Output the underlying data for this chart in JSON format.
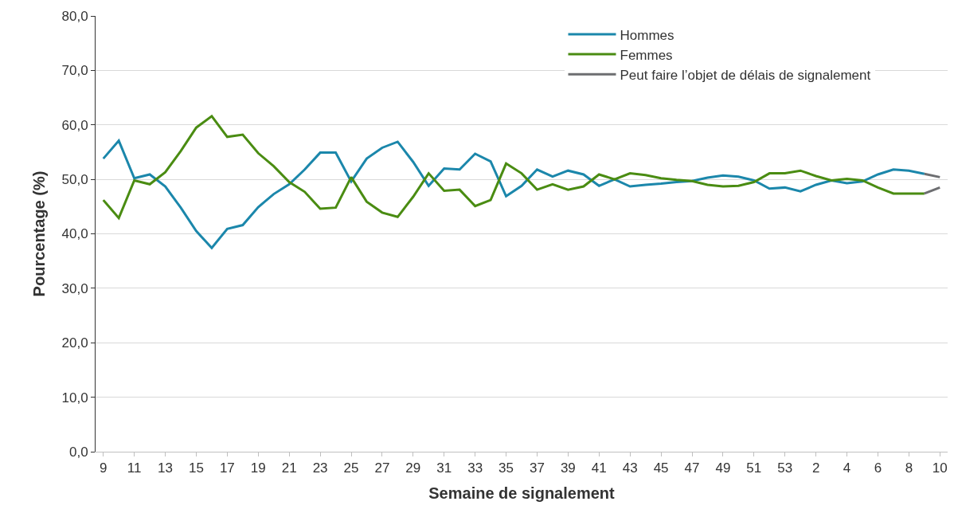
{
  "chart_data": {
    "type": "line",
    "xlabel": "Semaine de signalement",
    "ylabel": "Pourcentage (%)",
    "categories": [
      "9",
      null,
      "11",
      null,
      "13",
      null,
      "15",
      null,
      "17",
      null,
      "19",
      null,
      "21",
      null,
      "23",
      null,
      "25",
      null,
      "27",
      null,
      "29",
      null,
      "31",
      null,
      "33",
      null,
      "35",
      null,
      "37",
      null,
      "39",
      null,
      "41",
      null,
      "43",
      null,
      "45",
      null,
      "47",
      null,
      "49",
      null,
      "51",
      null,
      "53",
      null,
      "2",
      null,
      "4",
      null,
      "6",
      null,
      "8",
      null,
      "10"
    ],
    "series": [
      {
        "name": "Hommes",
        "color": "#1b87ab",
        "values": [
          53.8,
          57.1,
          50.2,
          50.9,
          48.7,
          44.8,
          40.5,
          37.4,
          40.9,
          41.6,
          44.9,
          47.3,
          49.1,
          51.8,
          54.9,
          54.9,
          49.6,
          53.8,
          55.8,
          56.9,
          53.2,
          48.8,
          52.0,
          51.8,
          54.7,
          53.3,
          46.9,
          48.8,
          51.8,
          50.5,
          51.6,
          50.9,
          48.8,
          50.0,
          48.7,
          49.0,
          49.2,
          49.5,
          49.7,
          50.3,
          50.7,
          50.5,
          49.8,
          48.3,
          48.5,
          47.8,
          49.0,
          49.8,
          49.3,
          49.6,
          50.9,
          51.8,
          51.6,
          51.0,
          null
        ]
      },
      {
        "name": "Femmes",
        "color": "#4a8c12",
        "values": [
          46.2,
          42.9,
          49.8,
          49.1,
          51.3,
          55.2,
          59.5,
          61.6,
          57.8,
          58.2,
          54.8,
          52.4,
          49.5,
          47.7,
          44.6,
          44.8,
          50.4,
          45.9,
          43.9,
          43.1,
          46.8,
          51.1,
          47.9,
          48.1,
          45.1,
          46.2,
          52.9,
          51.1,
          48.1,
          49.1,
          48.1,
          48.7,
          50.9,
          50.0,
          51.1,
          50.8,
          50.2,
          49.9,
          49.7,
          49.0,
          48.7,
          48.8,
          49.5,
          51.1,
          51.1,
          51.6,
          50.6,
          49.8,
          50.1,
          49.8,
          48.5,
          47.4,
          47.4,
          47.4,
          null
        ]
      },
      {
        "name": "Peut faire l’objet de délais de signalement",
        "color": "#6d6e71",
        "values": [
          null,
          null,
          null,
          null,
          null,
          null,
          null,
          null,
          null,
          null,
          null,
          null,
          null,
          null,
          null,
          null,
          null,
          null,
          null,
          null,
          null,
          null,
          null,
          null,
          null,
          null,
          null,
          null,
          null,
          null,
          null,
          null,
          null,
          null,
          null,
          null,
          null,
          null,
          null,
          null,
          null,
          null,
          null,
          null,
          null,
          null,
          null,
          null,
          null,
          null,
          null,
          null,
          null,
          51.0,
          50.4
        ]
      },
      {
        "color": "#6d6e71",
        "values": [
          null,
          null,
          null,
          null,
          null,
          null,
          null,
          null,
          null,
          null,
          null,
          null,
          null,
          null,
          null,
          null,
          null,
          null,
          null,
          null,
          null,
          null,
          null,
          null,
          null,
          null,
          null,
          null,
          null,
          null,
          null,
          null,
          null,
          null,
          null,
          null,
          null,
          null,
          null,
          null,
          null,
          null,
          null,
          null,
          null,
          null,
          null,
          null,
          null,
          null,
          null,
          null,
          null,
          47.4,
          48.5
        ]
      }
    ],
    "ylim": [
      0,
      80
    ],
    "yticks": [
      {
        "value": 0,
        "label": "0,0"
      },
      {
        "value": 10,
        "label": "10,0"
      },
      {
        "value": 20,
        "label": "20,0"
      },
      {
        "value": 30,
        "label": "30,0"
      },
      {
        "value": 40,
        "label": "40,0"
      },
      {
        "value": 50,
        "label": "50,0"
      },
      {
        "value": 60,
        "label": "60,0"
      },
      {
        "value": 70,
        "label": "70,0"
      },
      {
        "value": 80,
        "label": "80,0"
      }
    ],
    "grid": "y",
    "legend": "top right",
    "marker": "none",
    "line_style": "solid"
  }
}
